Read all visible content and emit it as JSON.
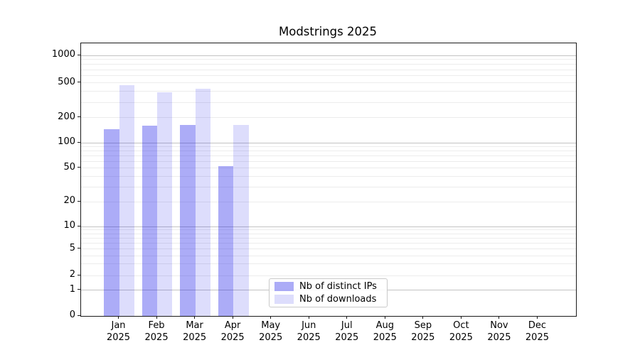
{
  "title": "Modstrings 2025",
  "chart_data": {
    "type": "bar",
    "title": "Modstrings 2025",
    "categories": [
      "Jan",
      "Feb",
      "Mar",
      "Apr",
      "May",
      "Jun",
      "Jul",
      "Aug",
      "Sep",
      "Oct",
      "Nov",
      "Dec"
    ],
    "year_label": "2025",
    "series": [
      {
        "name": "Nb of distinct IPs",
        "color": "rgba(30,30,232,0.37)",
        "color_hex_on_white": "#acacf7",
        "values": [
          145,
          160,
          165,
          53,
          0,
          0,
          0,
          0,
          0,
          0,
          0,
          0
        ]
      },
      {
        "name": "Nb of downloads",
        "color": "rgba(30,30,232,0.15)",
        "color_hex_on_white": "#dcdcfa",
        "values": [
          470,
          390,
          430,
          165,
          0,
          0,
          0,
          0,
          0,
          0,
          0,
          0
        ]
      }
    ],
    "yticks": [
      0,
      1,
      2,
      5,
      10,
      20,
      50,
      100,
      200,
      500,
      1000
    ],
    "yscale": "symlog",
    "ylim": [
      0,
      1400
    ],
    "xlabel": "",
    "ylabel": "",
    "grid": {
      "horizontal": true,
      "major_lines": [
        1,
        10,
        100,
        1000
      ],
      "minor_lines": "2-9 multiples per decade"
    },
    "legend_position": "lower center"
  }
}
